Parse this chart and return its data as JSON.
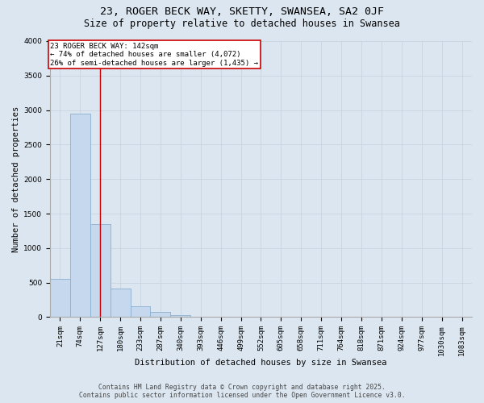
{
  "title": "23, ROGER BECK WAY, SKETTY, SWANSEA, SA2 0JF",
  "subtitle": "Size of property relative to detached houses in Swansea",
  "xlabel": "Distribution of detached houses by size in Swansea",
  "ylabel": "Number of detached properties",
  "categories": [
    "21sqm",
    "74sqm",
    "127sqm",
    "180sqm",
    "233sqm",
    "287sqm",
    "340sqm",
    "393sqm",
    "446sqm",
    "499sqm",
    "552sqm",
    "605sqm",
    "658sqm",
    "711sqm",
    "764sqm",
    "818sqm",
    "871sqm",
    "924sqm",
    "977sqm",
    "1030sqm",
    "1083sqm"
  ],
  "bar_heights": [
    550,
    2950,
    1350,
    420,
    160,
    70,
    30,
    10,
    0,
    0,
    0,
    0,
    0,
    0,
    0,
    0,
    0,
    0,
    0,
    0,
    0
  ],
  "bar_color": "#c5d8ed",
  "bar_edgecolor": "#8ab0cf",
  "grid_color": "#c8d4e0",
  "bg_color": "#dce6f0",
  "annotation_text": "23 ROGER BECK WAY: 142sqm\n← 74% of detached houses are smaller (4,072)\n26% of semi-detached houses are larger (1,435) →",
  "annotation_box_color": "#ffffff",
  "annotation_box_edgecolor": "#cc0000",
  "property_line_x": 2.0,
  "ylim": [
    0,
    4000
  ],
  "yticks": [
    0,
    500,
    1000,
    1500,
    2000,
    2500,
    3000,
    3500,
    4000
  ],
  "footer_line1": "Contains HM Land Registry data © Crown copyright and database right 2025.",
  "footer_line2": "Contains public sector information licensed under the Open Government Licence v3.0.",
  "title_fontsize": 9.5,
  "subtitle_fontsize": 8.5,
  "axis_label_fontsize": 7.5,
  "tick_fontsize": 6.5,
  "annotation_fontsize": 6.5,
  "footer_fontsize": 5.8
}
